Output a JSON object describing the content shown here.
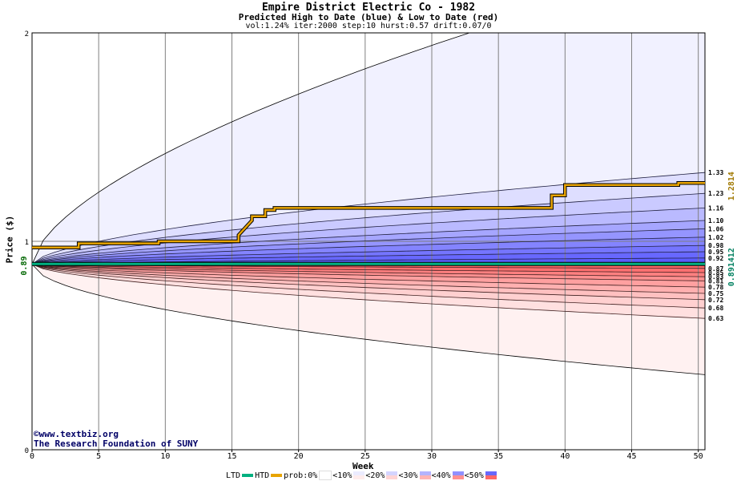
{
  "header": {
    "title": "Empire District Electric Co - 1982",
    "subtitle": "Predicted High to Date (blue) &  Low to Date (red)",
    "params": "vol:1.24% iter:2000 step:10 hurst:0.57 drift:0.07/0"
  },
  "credits": {
    "line1": "©www.textbiz.org",
    "line2": "The Research Foundation of SUNY"
  },
  "legend": {
    "ltd": "LTD",
    "htd": "HTD",
    "prob": "prob:0%",
    "b10": "<10%",
    "b20": "<20%",
    "b30": "<30%",
    "b40": "<40%",
    "b50": "<50%"
  },
  "chart_data": {
    "type": "area",
    "xlabel": "Week",
    "ylabel": "Price ($)",
    "xlim": [
      0,
      50.5
    ],
    "ylim": [
      0,
      2
    ],
    "x_ticks": [
      0,
      5,
      10,
      15,
      20,
      25,
      30,
      35,
      40,
      45,
      50
    ],
    "y_ticks": [
      0,
      1,
      2
    ],
    "start_price": 0.89,
    "start_label": "0.89",
    "htd_final_label": "1.2814",
    "ltd_final_label": "0.891412",
    "high_quantiles_end": [
      0.92,
      0.95,
      0.98,
      1.02,
      1.06,
      1.1,
      1.16,
      1.23,
      1.33
    ],
    "low_quantiles_end": [
      0.87,
      0.85,
      0.83,
      0.81,
      0.78,
      0.75,
      0.72,
      0.68,
      0.63
    ],
    "right_labels": [
      "1.33",
      "1.23",
      "1.16",
      "1.10",
      "1.06",
      "1.02",
      "0.98",
      "0.95",
      "0.92",
      "0.87",
      "0.85",
      "0.83",
      "0.81",
      "0.78",
      "0.75",
      "0.72",
      "0.68",
      "0.63"
    ],
    "envelope_upper_end": 2.0,
    "envelope_lower_end": 0.36,
    "htd_series": {
      "x": [
        0,
        3.5,
        3.5,
        9.5,
        9.5,
        15.5,
        15.5,
        16.5,
        16.5,
        17.5,
        17.5,
        18.2,
        18.2,
        39,
        39,
        40,
        40,
        48.5,
        48.5,
        50.5
      ],
      "y": [
        0.97,
        0.97,
        0.99,
        0.99,
        1.0,
        1.0,
        1.03,
        1.1,
        1.12,
        1.12,
        1.15,
        1.15,
        1.16,
        1.16,
        1.22,
        1.22,
        1.27,
        1.27,
        1.28,
        1.28
      ]
    },
    "ltd_series": {
      "x": [
        0,
        50.5
      ],
      "y": [
        0.891412,
        0.891412
      ]
    },
    "colors": {
      "outer_high": "#f1f1ff",
      "outer_low": "#fff1f1",
      "high_band": "#6868ff",
      "low_band": "#ff6868",
      "htd": "#e8a400",
      "ltd": "#00b080",
      "htd_label": "#a07800",
      "ltd_label": "#008060",
      "start_label": "#006600"
    }
  }
}
